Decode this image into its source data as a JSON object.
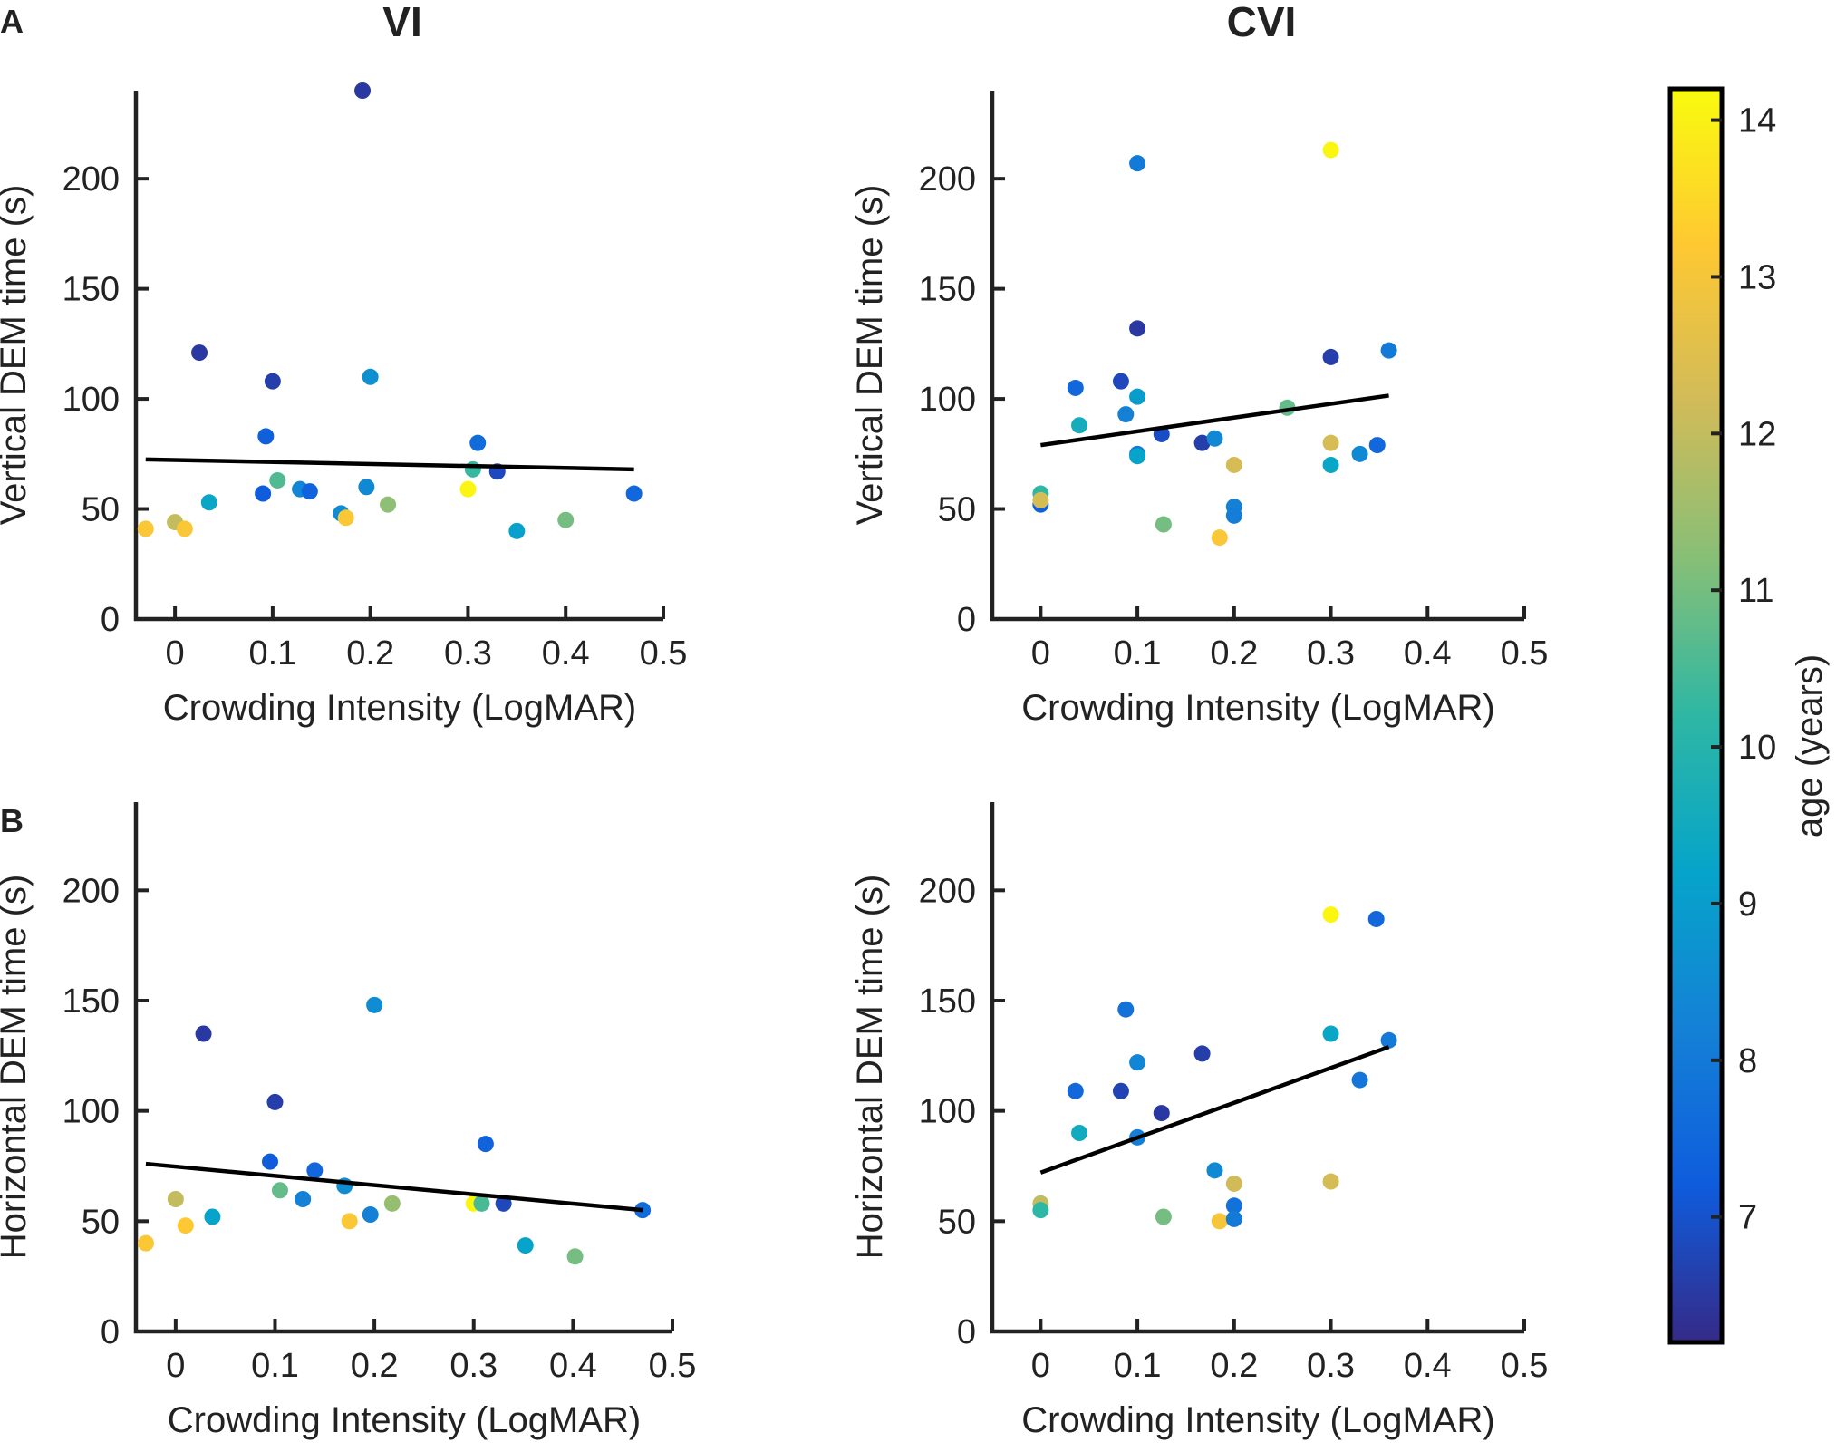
{
  "chart_data": {
    "type": "scatter",
    "column_titles": [
      "VI",
      "CVI"
    ],
    "panel_labels": [
      "A",
      "B"
    ],
    "colorbar": {
      "label": "age (years)",
      "range": [
        6.2,
        14.2
      ],
      "ticks": [
        7,
        8,
        9,
        10,
        11,
        12,
        13,
        14
      ],
      "tick_labels": [
        "7",
        "8",
        "9",
        "10",
        "11",
        "12",
        "13",
        "14"
      ],
      "colormap": [
        "#352a87",
        "#0f5cdd",
        "#1481d6",
        "#06a4ca",
        "#2eb7a4",
        "#87bf77",
        "#d1bb59",
        "#fec832",
        "#f9fb0e"
      ]
    },
    "fit_line_color": "#000000",
    "panels": [
      {
        "id": "A-VI",
        "xlabel": "Crowding Intensity (LogMAR)",
        "ylabel": "Vertical DEM time (s)",
        "xlim": [
          -0.04,
          0.5
        ],
        "ylim": [
          0,
          240
        ],
        "xticks": [
          0,
          0.1,
          0.2,
          0.3,
          0.4,
          0.5
        ],
        "xtick_labels": [
          "0",
          "0.1",
          "0.2",
          "0.3",
          "0.4",
          "0.5"
        ],
        "yticks": [
          0,
          50,
          100,
          150,
          200
        ],
        "ytick_labels": [
          "0",
          "50",
          "100",
          "150",
          "200"
        ],
        "fit_line": {
          "x": [
            -0.03,
            0.47
          ],
          "y": [
            72.5,
            68
          ]
        },
        "points": [
          {
            "x": -0.03,
            "y": 41,
            "age": 13.1
          },
          {
            "x": 0.0,
            "y": 44,
            "age": 12.0
          },
          {
            "x": 0.01,
            "y": 41,
            "age": 13.1
          },
          {
            "x": 0.025,
            "y": 121,
            "age": 6.5
          },
          {
            "x": 0.035,
            "y": 53,
            "age": 9.3
          },
          {
            "x": 0.09,
            "y": 57,
            "age": 7.2
          },
          {
            "x": 0.093,
            "y": 83,
            "age": 7.3
          },
          {
            "x": 0.1,
            "y": 108,
            "age": 6.6
          },
          {
            "x": 0.105,
            "y": 63,
            "age": 10.6
          },
          {
            "x": 0.128,
            "y": 59,
            "age": 8.3
          },
          {
            "x": 0.138,
            "y": 58,
            "age": 7.4
          },
          {
            "x": 0.17,
            "y": 48,
            "age": 8.5
          },
          {
            "x": 0.175,
            "y": 46,
            "age": 13.1
          },
          {
            "x": 0.192,
            "y": 240,
            "age": 6.5
          },
          {
            "x": 0.196,
            "y": 60,
            "age": 8.4
          },
          {
            "x": 0.2,
            "y": 110,
            "age": 8.6
          },
          {
            "x": 0.218,
            "y": 52,
            "age": 11.3
          },
          {
            "x": 0.3,
            "y": 59,
            "age": 14.1
          },
          {
            "x": 0.305,
            "y": 68,
            "age": 10.3
          },
          {
            "x": 0.31,
            "y": 80,
            "age": 7.6
          },
          {
            "x": 0.33,
            "y": 67,
            "age": 6.8
          },
          {
            "x": 0.35,
            "y": 40,
            "age": 9.1
          },
          {
            "x": 0.4,
            "y": 45,
            "age": 11.0
          },
          {
            "x": 0.47,
            "y": 57,
            "age": 7.5
          }
        ]
      },
      {
        "id": "A-CVI",
        "xlabel": "Crowding Intensity (LogMAR)",
        "ylabel": "Vertical DEM time (s)",
        "xlim": [
          -0.05,
          0.5
        ],
        "ylim": [
          0,
          240
        ],
        "xticks": [
          0,
          0.1,
          0.2,
          0.3,
          0.4,
          0.5
        ],
        "xtick_labels": [
          "0",
          "0.1",
          "0.2",
          "0.3",
          "0.4",
          "0.5"
        ],
        "yticks": [
          0,
          50,
          100,
          150,
          200
        ],
        "ytick_labels": [
          "0",
          "50",
          "100",
          "150",
          "200"
        ],
        "fit_line": {
          "x": [
            0.0,
            0.36
          ],
          "y": [
            79,
            101.5
          ]
        },
        "points": [
          {
            "x": 0.0,
            "y": 52,
            "age": 7.3
          },
          {
            "x": 0.0,
            "y": 57,
            "age": 10.2
          },
          {
            "x": 0.0,
            "y": 54,
            "age": 12.3
          },
          {
            "x": 0.036,
            "y": 105,
            "age": 7.5
          },
          {
            "x": 0.04,
            "y": 88,
            "age": 9.6
          },
          {
            "x": 0.083,
            "y": 108,
            "age": 6.8
          },
          {
            "x": 0.088,
            "y": 93,
            "age": 8.2
          },
          {
            "x": 0.1,
            "y": 207,
            "age": 8.0
          },
          {
            "x": 0.1,
            "y": 132,
            "age": 6.5
          },
          {
            "x": 0.1,
            "y": 101,
            "age": 9.0
          },
          {
            "x": 0.1,
            "y": 75,
            "age": 8.0
          },
          {
            "x": 0.1,
            "y": 74,
            "age": 9.2
          },
          {
            "x": 0.125,
            "y": 84,
            "age": 6.9
          },
          {
            "x": 0.127,
            "y": 43,
            "age": 11.0
          },
          {
            "x": 0.167,
            "y": 80,
            "age": 6.6
          },
          {
            "x": 0.18,
            "y": 82,
            "age": 8.4
          },
          {
            "x": 0.185,
            "y": 37,
            "age": 13.1
          },
          {
            "x": 0.2,
            "y": 70,
            "age": 12.3
          },
          {
            "x": 0.2,
            "y": 51,
            "age": 8.2
          },
          {
            "x": 0.2,
            "y": 47,
            "age": 8.1
          },
          {
            "x": 0.255,
            "y": 96,
            "age": 10.8
          },
          {
            "x": 0.3,
            "y": 213,
            "age": 14.1
          },
          {
            "x": 0.3,
            "y": 119,
            "age": 6.6
          },
          {
            "x": 0.3,
            "y": 80,
            "age": 12.3
          },
          {
            "x": 0.3,
            "y": 70,
            "age": 9.3
          },
          {
            "x": 0.33,
            "y": 75,
            "age": 8.4
          },
          {
            "x": 0.348,
            "y": 79,
            "age": 7.5
          },
          {
            "x": 0.36,
            "y": 122,
            "age": 8.0
          }
        ]
      },
      {
        "id": "B-VI",
        "xlabel": "Crowding Intensity (LogMAR)",
        "ylabel": "Horizontal DEM time (s)",
        "xlim": [
          -0.04,
          0.5
        ],
        "ylim": [
          0,
          240
        ],
        "xticks": [
          0,
          0.1,
          0.2,
          0.3,
          0.4,
          0.5
        ],
        "xtick_labels": [
          "0",
          "0.1",
          "0.2",
          "0.3",
          "0.4",
          "0.5"
        ],
        "yticks": [
          0,
          50,
          100,
          150,
          200
        ],
        "ytick_labels": [
          "0",
          "50",
          "100",
          "150",
          "200"
        ],
        "fit_line": {
          "x": [
            -0.03,
            0.47
          ],
          "y": [
            76,
            55
          ]
        },
        "points": [
          {
            "x": -0.03,
            "y": 40,
            "age": 13.1
          },
          {
            "x": 0.0,
            "y": 60,
            "age": 12.0
          },
          {
            "x": 0.01,
            "y": 48,
            "age": 13.2
          },
          {
            "x": 0.028,
            "y": 135,
            "age": 6.5
          },
          {
            "x": 0.037,
            "y": 52,
            "age": 9.2
          },
          {
            "x": 0.095,
            "y": 77,
            "age": 7.2
          },
          {
            "x": 0.1,
            "y": 104,
            "age": 6.6
          },
          {
            "x": 0.105,
            "y": 64,
            "age": 10.8
          },
          {
            "x": 0.128,
            "y": 60,
            "age": 8.2
          },
          {
            "x": 0.14,
            "y": 73,
            "age": 7.5
          },
          {
            "x": 0.17,
            "y": 66,
            "age": 8.5
          },
          {
            "x": 0.175,
            "y": 50,
            "age": 13.1
          },
          {
            "x": 0.196,
            "y": 53,
            "age": 8.2
          },
          {
            "x": 0.2,
            "y": 148,
            "age": 8.5
          },
          {
            "x": 0.218,
            "y": 58,
            "age": 11.4
          },
          {
            "x": 0.3,
            "y": 58,
            "age": 14.1
          },
          {
            "x": 0.308,
            "y": 58,
            "age": 10.5
          },
          {
            "x": 0.312,
            "y": 85,
            "age": 7.4
          },
          {
            "x": 0.33,
            "y": 58,
            "age": 6.8
          },
          {
            "x": 0.352,
            "y": 39,
            "age": 9.2
          },
          {
            "x": 0.402,
            "y": 34,
            "age": 11.0
          },
          {
            "x": 0.47,
            "y": 55,
            "age": 7.6
          }
        ]
      },
      {
        "id": "B-CVI",
        "xlabel": "Crowding Intensity (LogMAR)",
        "ylabel": "Horizontal DEM time (s)",
        "xlim": [
          -0.05,
          0.5
        ],
        "ylim": [
          0,
          240
        ],
        "xticks": [
          0,
          0.1,
          0.2,
          0.3,
          0.4,
          0.5
        ],
        "xtick_labels": [
          "0",
          "0.1",
          "0.2",
          "0.3",
          "0.4",
          "0.5"
        ],
        "yticks": [
          0,
          50,
          100,
          150,
          200
        ],
        "ytick_labels": [
          "0",
          "50",
          "100",
          "150",
          "200"
        ],
        "fit_line": {
          "x": [
            0.0,
            0.36
          ],
          "y": [
            72,
            129
          ]
        },
        "points": [
          {
            "x": 0.0,
            "y": 58,
            "age": 12.0
          },
          {
            "x": 0.0,
            "y": 55,
            "age": 10.2
          },
          {
            "x": 0.036,
            "y": 109,
            "age": 7.5
          },
          {
            "x": 0.04,
            "y": 90,
            "age": 9.5
          },
          {
            "x": 0.083,
            "y": 109,
            "age": 6.7
          },
          {
            "x": 0.088,
            "y": 146,
            "age": 7.8
          },
          {
            "x": 0.1,
            "y": 122,
            "age": 8.3
          },
          {
            "x": 0.1,
            "y": 88,
            "age": 8.1
          },
          {
            "x": 0.125,
            "y": 99,
            "age": 6.5
          },
          {
            "x": 0.127,
            "y": 52,
            "age": 11.0
          },
          {
            "x": 0.167,
            "y": 126,
            "age": 6.6
          },
          {
            "x": 0.18,
            "y": 73,
            "age": 8.4
          },
          {
            "x": 0.185,
            "y": 50,
            "age": 13.0
          },
          {
            "x": 0.2,
            "y": 67,
            "age": 12.2
          },
          {
            "x": 0.2,
            "y": 57,
            "age": 7.8
          },
          {
            "x": 0.2,
            "y": 51,
            "age": 8.0
          },
          {
            "x": 0.3,
            "y": 189,
            "age": 14.1
          },
          {
            "x": 0.3,
            "y": 135,
            "age": 9.3
          },
          {
            "x": 0.3,
            "y": 68,
            "age": 12.3
          },
          {
            "x": 0.33,
            "y": 114,
            "age": 7.9
          },
          {
            "x": 0.347,
            "y": 187,
            "age": 7.5
          },
          {
            "x": 0.36,
            "y": 132,
            "age": 8.0
          }
        ]
      }
    ]
  }
}
